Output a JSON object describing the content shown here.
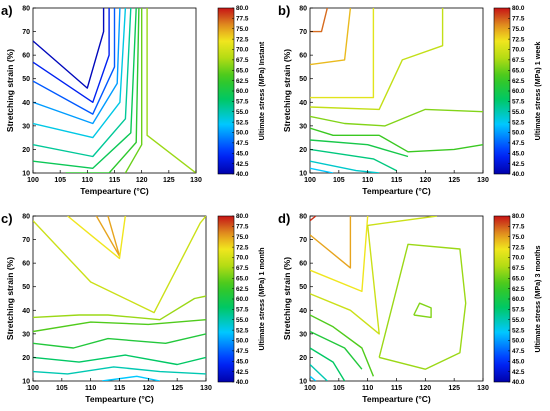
{
  "chart_data": [
    {
      "type": "contour",
      "panel": "a)",
      "xlabel": "Tempearture (°C)",
      "ylabel": "Stretching strain (%)",
      "colorbar_label": "Ultimate stress (MPa) Instant",
      "xlim": [
        100,
        130
      ],
      "ylim": [
        10,
        80
      ],
      "xticks": [
        100,
        105,
        110,
        115,
        120,
        125,
        130
      ],
      "yticks": [
        10,
        20,
        30,
        40,
        50,
        60,
        70,
        80
      ],
      "cbar_ticks": [
        "80.0",
        "77.5",
        "75.0",
        "72.5",
        "70.0",
        "67.5",
        "65.0",
        "62.5",
        "60.0",
        "57.5",
        "55.0",
        "52.5",
        "50.0",
        "47.5",
        "45.0",
        "42.5",
        "40.0"
      ],
      "cbar_range": [
        40,
        80
      ],
      "contours": [
        {
          "level": 41,
          "points": [
            [
              100,
              66
            ],
            [
              110,
              46
            ],
            [
              113,
              70
            ],
            [
              113,
              80
            ]
          ]
        },
        {
          "level": 44,
          "points": [
            [
              100,
              57
            ],
            [
              111,
              40
            ],
            [
              114,
              60
            ],
            [
              114,
              80
            ]
          ]
        },
        {
          "level": 47,
          "points": [
            [
              100,
              49
            ],
            [
              111,
              35
            ],
            [
              115,
              55
            ],
            [
              115,
              80
            ]
          ]
        },
        {
          "level": 50,
          "points": [
            [
              100,
              40
            ],
            [
              111,
              31
            ],
            [
              115.5,
              48
            ],
            [
              116,
              80
            ]
          ]
        },
        {
          "level": 53,
          "points": [
            [
              100,
              31
            ],
            [
              111,
              25
            ],
            [
              116,
              40
            ],
            [
              117,
              80
            ]
          ]
        },
        {
          "level": 56,
          "points": [
            [
              100,
              22
            ],
            [
              111,
              17
            ],
            [
              117,
              33
            ],
            [
              118,
              80
            ]
          ]
        },
        {
          "level": 59,
          "points": [
            [
              100,
              15
            ],
            [
              111,
              12
            ],
            [
              118,
              27
            ],
            [
              119,
              80
            ]
          ]
        },
        {
          "level": 62,
          "points": [
            [
              106,
              10
            ],
            [
              114,
              10
            ],
            [
              119,
              23
            ],
            [
              119.5,
              80
            ]
          ]
        },
        {
          "level": 65,
          "points": [
            [
              117,
              10
            ],
            [
              120,
              22
            ],
            [
              120,
              80
            ]
          ]
        },
        {
          "level": 67,
          "points": [
            [
              130,
              10
            ],
            [
              121,
              26
            ],
            [
              121,
              80
            ]
          ]
        }
      ]
    },
    {
      "type": "contour",
      "panel": "b)",
      "xlabel": "Tempearture (°C)",
      "ylabel": "Stretching strain (%)",
      "colorbar_label": "Ultimate stress (MPa) 1 week",
      "xlim": [
        100,
        130
      ],
      "ylim": [
        10,
        80
      ],
      "xticks": [
        100,
        105,
        110,
        115,
        120,
        125,
        130
      ],
      "yticks": [
        10,
        20,
        30,
        40,
        50,
        60,
        70,
        80
      ],
      "cbar_ticks": [
        "80.0",
        "77.5",
        "75.0",
        "72.5",
        "70.0",
        "67.5",
        "65.0",
        "62.5",
        "60.0",
        "57.5",
        "55.0",
        "52.5",
        "50.0",
        "47.5",
        "45.0",
        "42.5",
        "40.0"
      ],
      "cbar_range": [
        40,
        80
      ],
      "contours": [
        {
          "level": 77,
          "points": [
            [
              100,
              70
            ],
            [
              102,
              70
            ],
            [
              103,
              80
            ]
          ]
        },
        {
          "level": 74,
          "points": [
            [
              100,
              56
            ],
            [
              106,
              58
            ],
            [
              107,
              80
            ]
          ]
        },
        {
          "level": 71,
          "points": [
            [
              100,
              42
            ],
            [
              111,
              42
            ],
            [
              111,
              80
            ]
          ]
        },
        {
          "level": 69,
          "points": [
            [
              100,
              38
            ],
            [
              112,
              37
            ],
            [
              116,
              58
            ],
            [
              123,
              64
            ],
            [
              123,
              80
            ]
          ]
        },
        {
          "level": 66,
          "points": [
            [
              100,
              34
            ],
            [
              106,
              31
            ],
            [
              113,
              30
            ],
            [
              120,
              37
            ],
            [
              130,
              36
            ]
          ]
        },
        {
          "level": 63,
          "points": [
            [
              100,
              29
            ],
            [
              104,
              26
            ],
            [
              112,
              26
            ],
            [
              117,
              19
            ],
            [
              125,
              20
            ],
            [
              130,
              22
            ]
          ]
        },
        {
          "level": 60,
          "points": [
            [
              100,
              24
            ],
            [
              110,
              22
            ],
            [
              117,
              17
            ]
          ]
        },
        {
          "level": 57,
          "points": [
            [
              100,
              20
            ],
            [
              111,
              16
            ],
            [
              115,
              11
            ]
          ]
        },
        {
          "level": 54,
          "points": [
            [
              100,
              15
            ],
            [
              108,
              11
            ],
            [
              112,
              10
            ]
          ]
        },
        {
          "level": 52,
          "points": [
            [
              100,
              12
            ],
            [
              104,
              10
            ]
          ]
        }
      ]
    },
    {
      "type": "contour",
      "panel": "c)",
      "xlabel": "Tempearture (°C)",
      "ylabel": "Stretching strain (%)",
      "colorbar_label": "Ultimate stress (MPa) 1 month",
      "xlim": [
        100,
        130
      ],
      "ylim": [
        10,
        80
      ],
      "xticks": [
        100,
        105,
        110,
        115,
        120,
        125,
        130
      ],
      "yticks": [
        10,
        20,
        30,
        40,
        50,
        60,
        70,
        80
      ],
      "cbar_ticks": [
        "80.0",
        "77.5",
        "75.0",
        "72.5",
        "70.0",
        "67.5",
        "65.0",
        "62.5",
        "60.0",
        "57.5",
        "55.0",
        "52.5",
        "50.0",
        "47.5",
        "45.0",
        "42.5",
        "40.0"
      ],
      "cbar_range": [
        40,
        80
      ],
      "contours": [
        {
          "level": 75,
          "points": [
            [
              111,
              80
            ],
            [
              115,
              63
            ],
            [
              113,
              80
            ]
          ]
        },
        {
          "level": 72,
          "points": [
            [
              106,
              80
            ],
            [
              110,
              72
            ],
            [
              115,
              62
            ],
            [
              116,
              80
            ]
          ]
        },
        {
          "level": 69.5,
          "points": [
            [
              100,
              78
            ],
            [
              110,
              52
            ],
            [
              121,
              39
            ],
            [
              129,
              77
            ],
            [
              130,
              80
            ]
          ]
        },
        {
          "level": 67,
          "points": [
            [
              100,
              37
            ],
            [
              108,
              38
            ],
            [
              113,
              38
            ],
            [
              122,
              36
            ],
            [
              128,
              45
            ],
            [
              130,
              46
            ]
          ]
        },
        {
          "level": 64,
          "points": [
            [
              100,
              31
            ],
            [
              110,
              35
            ],
            [
              120,
              34
            ],
            [
              130,
              36
            ]
          ]
        },
        {
          "level": 61,
          "points": [
            [
              100,
              26
            ],
            [
              107,
              24
            ],
            [
              113,
              28
            ],
            [
              123,
              26
            ],
            [
              130,
              30
            ]
          ]
        },
        {
          "level": 58,
          "points": [
            [
              100,
              20
            ],
            [
              108,
              18
            ],
            [
              116,
              21
            ],
            [
              125,
              17
            ],
            [
              130,
              20
            ]
          ]
        },
        {
          "level": 55,
          "points": [
            [
              100,
              14
            ],
            [
              106,
              13
            ],
            [
              114,
              16
            ],
            [
              122,
              14
            ],
            [
              130,
              13
            ]
          ]
        },
        {
          "level": 52,
          "points": [
            [
              112,
              10
            ],
            [
              118,
              12
            ],
            [
              122,
              10
            ]
          ]
        }
      ]
    },
    {
      "type": "contour",
      "panel": "d)",
      "xlabel": "Tempearture (°C)",
      "ylabel": "Stretching strain (%)",
      "colorbar_label": "Ultimate stress (MPa) 3 months",
      "xlim": [
        100,
        130
      ],
      "ylim": [
        10,
        80
      ],
      "xticks": [
        100,
        105,
        110,
        115,
        120,
        125,
        130
      ],
      "yticks": [
        10,
        20,
        30,
        40,
        50,
        60,
        70,
        80
      ],
      "cbar_ticks": [
        "80.0",
        "77.5",
        "75.0",
        "72.5",
        "70.0",
        "67.5",
        "65.0",
        "62.5",
        "60.0",
        "57.5",
        "55.0",
        "52.5",
        "50.0",
        "47.5",
        "45.0",
        "42.5",
        "40.0"
      ],
      "cbar_range": [
        40,
        80
      ],
      "contours": [
        {
          "level": 79,
          "points": [
            [
              100,
              78
            ],
            [
              101,
              80
            ]
          ]
        },
        {
          "level": 75,
          "points": [
            [
              100,
              72
            ],
            [
              107,
              58
            ],
            [
              107,
              80
            ]
          ]
        },
        {
          "level": 72,
          "points": [
            [
              100,
              57
            ],
            [
              109,
              48
            ],
            [
              110,
              80
            ]
          ]
        },
        {
          "level": 69.5,
          "points": [
            [
              100,
              47
            ],
            [
              107,
              40
            ],
            [
              112,
              30
            ],
            [
              110,
              76
            ],
            [
              122,
              80
            ]
          ]
        },
        {
          "level": 67,
          "points": [
            [
              112,
              20
            ],
            [
              117,
              68
            ],
            [
              126,
              66
            ],
            [
              127,
              43
            ],
            [
              126,
              22
            ],
            [
              120,
              15
            ],
            [
              112,
              20
            ]
          ]
        },
        {
          "level": 66,
          "points": [
            [
              118,
              38
            ],
            [
              119,
              43
            ],
            [
              121,
              41
            ],
            [
              121,
              37
            ],
            [
              118,
              38
            ]
          ]
        },
        {
          "level": 64,
          "points": [
            [
              100,
              38
            ],
            [
              104,
              33
            ],
            [
              109,
              24
            ],
            [
              111,
              12
            ]
          ]
        },
        {
          "level": 61,
          "points": [
            [
              100,
              31
            ],
            [
              106,
              24
            ],
            [
              109,
              15
            ]
          ]
        },
        {
          "level": 58,
          "points": [
            [
              100,
              24
            ],
            [
              104,
              18
            ],
            [
              106,
              10
            ]
          ]
        },
        {
          "level": 55,
          "points": [
            [
              100,
              17
            ],
            [
              103,
              10
            ]
          ]
        },
        {
          "level": 52,
          "points": [
            [
              100,
              12
            ],
            [
              101,
              10
            ]
          ]
        }
      ]
    }
  ]
}
